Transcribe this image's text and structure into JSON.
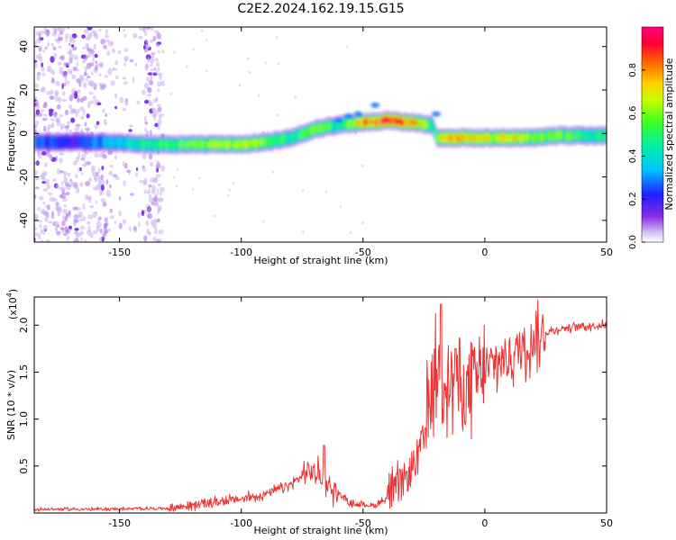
{
  "title": "C2E2.2024.162.19.15.G15",
  "colors": {
    "snr_line": "#ee3333",
    "axis": "#000000",
    "background": "#ffffff"
  },
  "chart_data": [
    {
      "type": "heatmap",
      "title": "C2E2.2024.162.19.15.G15",
      "xlabel": "Height of straight line (km)",
      "ylabel": "Frequency (Hz)",
      "xlim": [
        -185,
        50
      ],
      "ylim": [
        -50,
        49
      ],
      "x_ticks": [
        -150,
        -100,
        -50,
        0,
        50
      ],
      "y_ticks": [
        -40,
        -20,
        0,
        20,
        40
      ],
      "colorbar": {
        "label": "Normalized spectral amplitude",
        "range": [
          0.0,
          1.0
        ],
        "ticks": [
          0.0,
          0.2,
          0.4,
          0.6,
          0.8
        ],
        "colormap": "rainbow (purple-blue-cyan-green-yellow-red-magenta)"
      },
      "ridge": {
        "x": [
          -185,
          -170,
          -155,
          -140,
          -120,
          -100,
          -90,
          -80,
          -70,
          -60,
          -50,
          -40,
          -30,
          -22,
          -20,
          -18,
          -10,
          0,
          10,
          20,
          30,
          40,
          50
        ],
        "frequency": [
          -4,
          -4,
          -4,
          -5,
          -5,
          -5,
          -4,
          -2,
          2,
          4,
          5,
          6,
          5,
          4,
          -2,
          -2,
          -2,
          -2,
          -2,
          -2,
          -1,
          -1,
          -1
        ],
        "peak_amplitude": [
          0.3,
          0.2,
          0.35,
          0.5,
          0.6,
          0.7,
          0.6,
          0.5,
          0.6,
          0.5,
          0.8,
          0.95,
          0.85,
          0.5,
          0.6,
          0.7,
          0.85,
          0.7,
          0.8,
          0.6,
          0.6,
          0.5,
          0.5
        ]
      },
      "noise_region_x": [
        -185,
        -132
      ]
    },
    {
      "type": "line",
      "xlabel": "Height of straight line (km)",
      "ylabel": "SNR (10 * v/v)",
      "y_multiplier": "(x10",
      "y_multiplier_exp": "4",
      "y_multiplier_close": ")",
      "xlim": [
        -185,
        50
      ],
      "ylim": [
        0.0,
        2.3
      ],
      "x_ticks": [
        -150,
        -100,
        -50,
        0,
        50
      ],
      "y_ticks": [
        0.5,
        1.0,
        1.5,
        2.0
      ],
      "envelope": {
        "x": [
          -185,
          -160,
          -130,
          -115,
          -100,
          -90,
          -80,
          -72,
          -67,
          -62,
          -55,
          -45,
          -38,
          -30,
          -25,
          -22,
          -20,
          -18,
          -15,
          -12,
          -10,
          -8,
          -5,
          0,
          5,
          10,
          15,
          20,
          25,
          30,
          40,
          50
        ],
        "y": [
          0.04,
          0.04,
          0.05,
          0.1,
          0.15,
          0.2,
          0.3,
          0.45,
          0.4,
          0.25,
          0.1,
          0.08,
          0.2,
          0.45,
          0.8,
          1.3,
          1.5,
          1.55,
          1.45,
          1.35,
          1.25,
          1.3,
          1.4,
          1.5,
          1.6,
          1.65,
          1.75,
          1.85,
          1.92,
          1.96,
          1.99,
          2.0
        ]
      },
      "peaks": [
        {
          "x": -66,
          "y": 0.72
        },
        {
          "x": -18,
          "y": 2.22
        },
        {
          "x": -12,
          "y": 1.75
        }
      ]
    }
  ]
}
